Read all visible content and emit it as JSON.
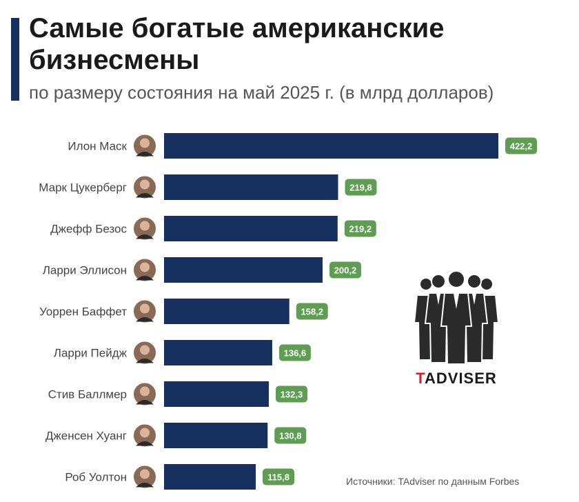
{
  "title": "Самые богатые американские бизнесмены",
  "subtitle": "по размеру состояния на май 2025 г. (в млрд долларов)",
  "source": "Источники: TAdviser по данным Forbes",
  "brand": {
    "first_letter": "T",
    "rest": "ADVISER"
  },
  "colors": {
    "bar": "#16315f",
    "value_badge": "#5e9d52",
    "accent": "#16315f",
    "brand_red": "#d2232a"
  },
  "chart_data": {
    "type": "bar",
    "orientation": "horizontal",
    "title": "Самые богатые американские бизнесмены",
    "subtitle": "по размеру состояния на май 2025 г. (в млрд долларов)",
    "xlabel": "",
    "ylabel": "",
    "xlim": [
      0,
      440
    ],
    "grid": false,
    "categories": [
      "Илон Маск",
      "Марк Цукерберг",
      "Джефф Безос",
      "Ларри Эллисон",
      "Уоррен Баффет",
      "Ларри Пейдж",
      "Стив Баллмер",
      "Дженсен Хуанг",
      "Роб Уолтон"
    ],
    "values": [
      422.2,
      219.8,
      219.2,
      200.2,
      158.2,
      136.6,
      132.3,
      130.8,
      115.8
    ],
    "value_labels": [
      "422,2",
      "219,8",
      "219,2",
      "200,2",
      "158,2",
      "136,6",
      "132,3",
      "130,8",
      "115,8"
    ]
  }
}
